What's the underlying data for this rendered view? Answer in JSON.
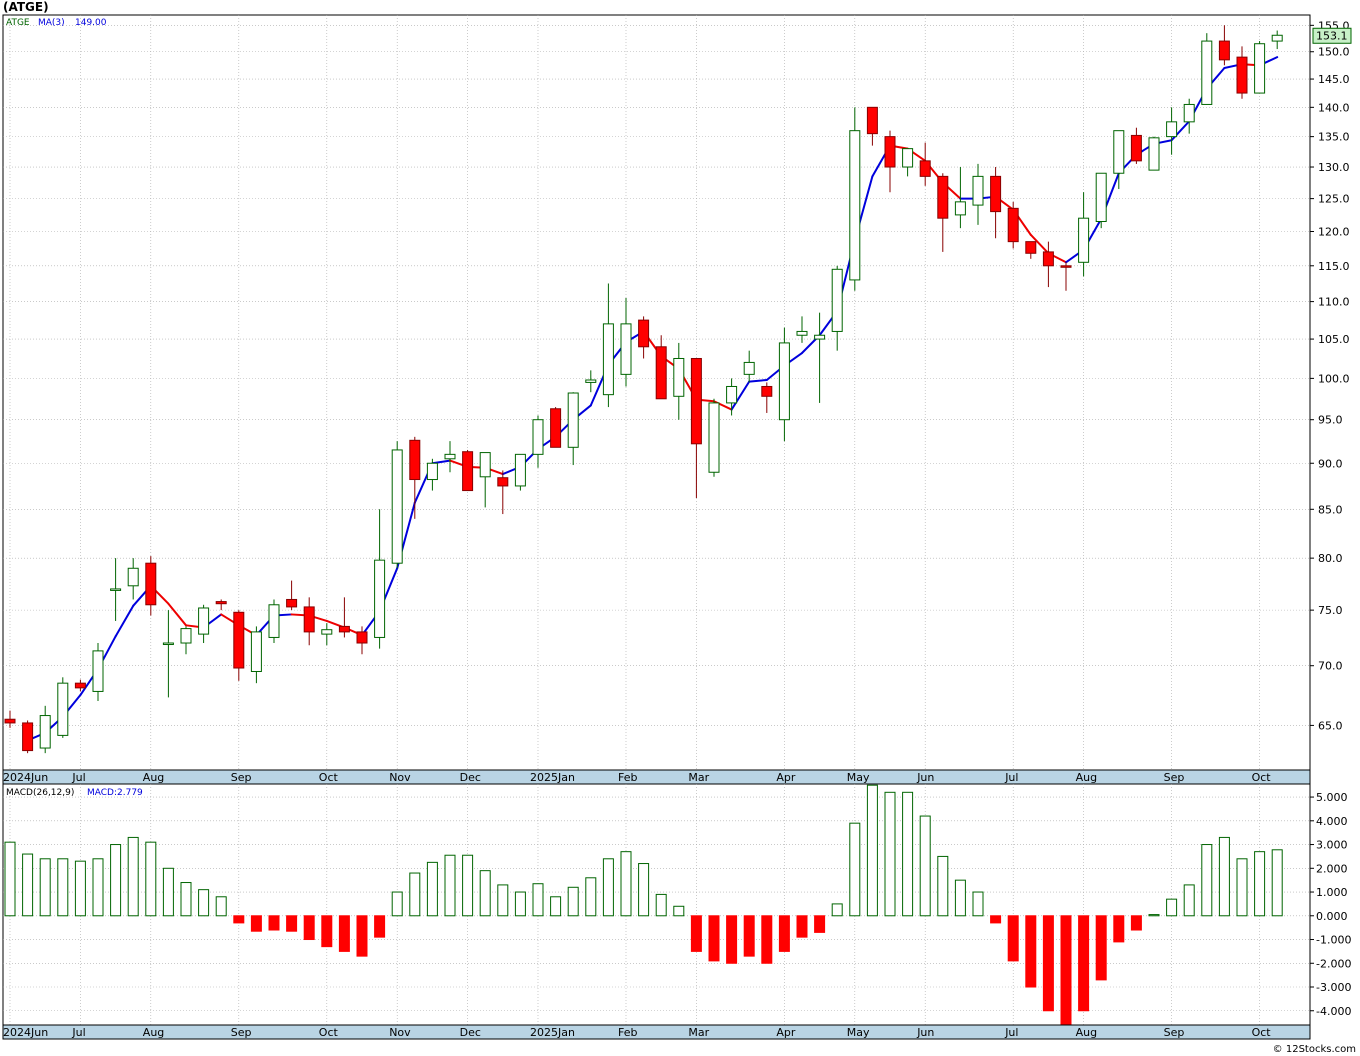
{
  "title": "(ATGE)",
  "credit": "© 12Stocks.com",
  "colors": {
    "up": "#006400",
    "down": "#ff0000",
    "ma_up": "#0000dd",
    "ma_down": "#ee0000",
    "axis_band": "#b9d4e4",
    "grid": "#aaaaaa",
    "last_price_bg": "#c8f0c8"
  },
  "price_panel": {
    "legend": {
      "symbol": "ATGE",
      "indicator": "MA(3)",
      "value": "149.00"
    },
    "last_price_label": "153.1",
    "y_ticks": [
      "155.0",
      "150.0",
      "145.0",
      "140.0",
      "135.0",
      "130.0",
      "125.0",
      "120.0",
      "115.0",
      "110.0",
      "105.0",
      "100.0",
      "95.0",
      "90.0",
      "85.0",
      "80.0",
      "75.0",
      "70.0",
      "65.0"
    ],
    "x_labels": [
      "2024Jun",
      "Jul",
      "Aug",
      "Sep",
      "Oct",
      "Nov",
      "Dec",
      "2025Jan",
      "Feb",
      "Mar",
      "Apr",
      "May",
      "Jun",
      "Jul",
      "Aug",
      "Sep",
      "Oct"
    ]
  },
  "macd_panel": {
    "legend": {
      "name": "MACD(26,12,9)",
      "value_label": "MACD:2.779"
    },
    "y_ticks": [
      "5.000",
      "4.000",
      "3.000",
      "2.000",
      "1.000",
      "0.000",
      "-1.000",
      "-2.000",
      "-3.000",
      "-4.000"
    ],
    "x_labels": [
      "2024Jun",
      "Jul",
      "Aug",
      "Sep",
      "Oct",
      "Nov",
      "Dec",
      "2025Jan",
      "Feb",
      "Mar",
      "Apr",
      "May",
      "Jun",
      "Jul",
      "Aug",
      "Sep",
      "Oct"
    ]
  },
  "chart_data": [
    {
      "type": "candlestick",
      "title": "(ATGE)",
      "yscale": "log",
      "ylim": [
        61.5,
        157
      ],
      "x_labels": [
        "2024Jun",
        "Jul",
        "Aug",
        "Sep",
        "Oct",
        "Nov",
        "Dec",
        "2025Jan",
        "Feb",
        "Mar",
        "Apr",
        "May",
        "Jun",
        "Jul",
        "Aug",
        "Sep",
        "Oct"
      ],
      "ohlc": [
        [
          65.5,
          66.2,
          64.8,
          65.2
        ],
        [
          65.2,
          65.4,
          62.8,
          63.0
        ],
        [
          63.2,
          66.6,
          62.8,
          65.8
        ],
        [
          64.2,
          69.0,
          64.0,
          68.5
        ],
        [
          68.5,
          68.8,
          67.8,
          68.1
        ],
        [
          67.8,
          72.0,
          67.0,
          71.3
        ],
        [
          77.0,
          80.0,
          74.0,
          77.0
        ],
        [
          77.3,
          80.0,
          76.0,
          79.0
        ],
        [
          79.5,
          80.2,
          74.5,
          75.5
        ],
        [
          72.0,
          75.0,
          67.3,
          72.0
        ],
        [
          72.0,
          73.5,
          71.0,
          73.3
        ],
        [
          72.8,
          75.5,
          72.0,
          75.2
        ],
        [
          75.8,
          76.0,
          75.0,
          75.6
        ],
        [
          74.8,
          75.0,
          68.7,
          69.8
        ],
        [
          69.5,
          73.5,
          68.5,
          73.0
        ],
        [
          72.5,
          76.0,
          72.0,
          75.5
        ],
        [
          76.0,
          77.8,
          75.0,
          75.3
        ],
        [
          75.3,
          76.2,
          71.8,
          73.0
        ],
        [
          72.8,
          73.8,
          71.8,
          73.2
        ],
        [
          73.5,
          76.2,
          72.5,
          73.0
        ],
        [
          73.0,
          73.5,
          71.0,
          72.0
        ],
        [
          72.5,
          85.0,
          71.5,
          79.8
        ],
        [
          79.5,
          92.5,
          79.0,
          91.5
        ],
        [
          92.6,
          93.0,
          84.0,
          88.2
        ],
        [
          88.2,
          90.5,
          87.0,
          90.0
        ],
        [
          90.5,
          92.5,
          89.0,
          91.0
        ],
        [
          91.3,
          91.5,
          87.0,
          87.0
        ],
        [
          88.5,
          91.0,
          85.2,
          91.2
        ],
        [
          88.4,
          89.2,
          84.5,
          87.5
        ],
        [
          87.5,
          91.0,
          87.0,
          91.0
        ],
        [
          91.0,
          95.5,
          89.5,
          95.0
        ],
        [
          96.3,
          96.5,
          91.8,
          91.8
        ],
        [
          91.8,
          98.3,
          89.8,
          98.2
        ],
        [
          99.5,
          101.0,
          98.3,
          99.8
        ],
        [
          98.0,
          112.5,
          96.5,
          107.0
        ],
        [
          100.5,
          110.5,
          99.0,
          107.0
        ],
        [
          107.5,
          108.0,
          102.5,
          104.0
        ],
        [
          104.0,
          105.5,
          97.5,
          97.5
        ],
        [
          97.8,
          104.5,
          95.0,
          102.5
        ],
        [
          102.5,
          102.5,
          86.2,
          92.2
        ],
        [
          89.0,
          97.5,
          88.5,
          97.0
        ],
        [
          97.0,
          100.0,
          95.5,
          99.0
        ],
        [
          100.5,
          103.5,
          99.5,
          102.0
        ],
        [
          99.0,
          99.5,
          95.8,
          97.8
        ],
        [
          95.0,
          106.5,
          92.5,
          104.5
        ],
        [
          105.5,
          108.0,
          104.5,
          106.0
        ],
        [
          105.0,
          108.5,
          97.0,
          105.5
        ],
        [
          106.0,
          115.0,
          103.5,
          114.5
        ],
        [
          113.0,
          140.0,
          111.5,
          136.0
        ],
        [
          140.0,
          140.0,
          133.5,
          135.5
        ],
        [
          135.0,
          136.0,
          126.0,
          130.0
        ],
        [
          130.0,
          133.0,
          128.5,
          133.0
        ],
        [
          131.0,
          134.0,
          127.0,
          128.5
        ],
        [
          128.5,
          129.0,
          117.0,
          122.0
        ],
        [
          122.5,
          130.0,
          120.5,
          124.5
        ],
        [
          124.0,
          130.5,
          121.0,
          128.5
        ],
        [
          128.5,
          130.0,
          119.0,
          123.0
        ],
        [
          123.5,
          124.5,
          117.5,
          118.5
        ],
        [
          118.5,
          118.5,
          116.0,
          116.8
        ],
        [
          117.0,
          118.5,
          112.0,
          115.0
        ],
        [
          115.0,
          115.5,
          111.5,
          114.8
        ],
        [
          115.5,
          126.0,
          113.5,
          122.0
        ],
        [
          121.5,
          128.5,
          120.5,
          129.0
        ],
        [
          129.0,
          135.5,
          126.5,
          136.0
        ],
        [
          135.2,
          136.5,
          130.5,
          131.0
        ],
        [
          129.5,
          135.0,
          129.5,
          134.8
        ],
        [
          135.0,
          140.0,
          132.0,
          137.5
        ],
        [
          137.5,
          141.5,
          135.5,
          140.5
        ],
        [
          140.5,
          153.5,
          140.5,
          152.0
        ],
        [
          152.0,
          155.0,
          147.5,
          148.5
        ],
        [
          149.0,
          151.0,
          141.5,
          142.5
        ],
        [
          142.5,
          152.0,
          142.5,
          151.5
        ],
        [
          152.0,
          154.0,
          150.5,
          153.1
        ]
      ],
      "series": [
        {
          "name": "MA(3)",
          "values": [
            null,
            63.8,
            64.4,
            65.7,
            67.5,
            69.7,
            72.6,
            75.4,
            77.3,
            75.6,
            73.6,
            73.4,
            74.6,
            73.6,
            72.7,
            74.5,
            74.6,
            74.5,
            74.0,
            73.4,
            72.7,
            74.9,
            79.0,
            85.7,
            90.0,
            90.3,
            89.6,
            89.5,
            88.8,
            89.6,
            91.6,
            93.0,
            95.0,
            96.7,
            101.7,
            104.6,
            106.0,
            102.8,
            101.2,
            97.4,
            97.2,
            96.2,
            99.6,
            99.8,
            101.6,
            103.2,
            105.5,
            108.7,
            118.7,
            128.5,
            133.5,
            133.0,
            131.0,
            127.5,
            125.0,
            125.0,
            125.3,
            123.3,
            119.5,
            116.8,
            115.5,
            117.3,
            121.9,
            129.0,
            132.0,
            133.8,
            134.4,
            137.6,
            143.3,
            147.0,
            147.7,
            147.5,
            149.0
          ]
        }
      ]
    },
    {
      "type": "bar",
      "title": "MACD(26,12,9)",
      "ylim": [
        -4.6,
        5.55
      ],
      "x_labels": [
        "2024Jun",
        "Jul",
        "Aug",
        "Sep",
        "Oct",
        "Nov",
        "Dec",
        "2025Jan",
        "Feb",
        "Mar",
        "Apr",
        "May",
        "Jun",
        "Jul",
        "Aug",
        "Sep",
        "Oct"
      ],
      "series": [
        {
          "name": "MACD",
          "values": [
            3.1,
            2.6,
            2.4,
            2.4,
            2.3,
            2.4,
            3.0,
            3.3,
            3.1,
            2.0,
            1.4,
            1.1,
            0.8,
            -0.3,
            -0.65,
            -0.6,
            -0.65,
            -1.0,
            -1.3,
            -1.5,
            -1.7,
            -0.9,
            1.0,
            1.8,
            2.25,
            2.55,
            2.55,
            1.9,
            1.3,
            1.0,
            1.35,
            0.8,
            1.2,
            1.6,
            2.4,
            2.7,
            2.2,
            0.9,
            0.4,
            -1.5,
            -1.9,
            -2.0,
            -1.7,
            -2.0,
            -1.5,
            -0.9,
            -0.7,
            0.5,
            3.9,
            5.5,
            5.2,
            5.2,
            4.2,
            2.5,
            1.5,
            1.0,
            -0.3,
            -1.9,
            -3.0,
            -4.0,
            -4.75,
            -4.0,
            -2.7,
            -1.1,
            -0.6,
            0.05,
            0.7,
            1.3,
            3.0,
            3.3,
            2.4,
            2.7,
            2.779
          ]
        }
      ]
    }
  ]
}
